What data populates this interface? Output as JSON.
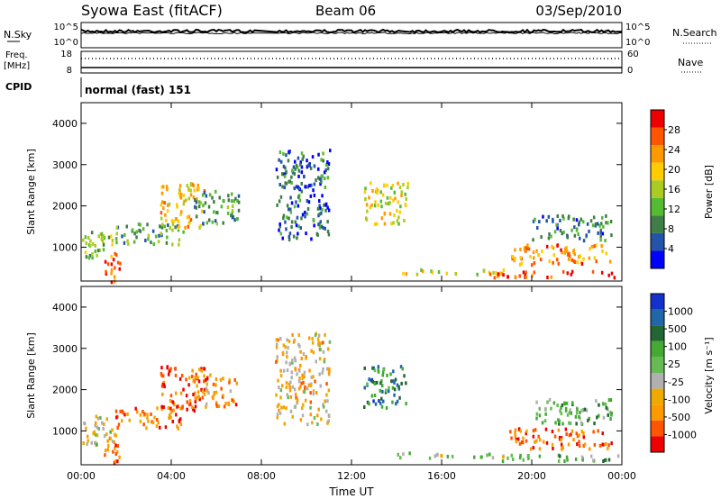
{
  "header": {
    "station": "Syowa East (fitACF)",
    "beam": "Beam 06",
    "date": "03/Sep/2010"
  },
  "top_panels": {
    "nsky": {
      "label": "N.Sky",
      "ticks": [
        "10^5",
        "10^0"
      ],
      "right_label": "N.Search",
      "right_ticks": [
        "10^5",
        "10^0"
      ]
    },
    "freq": {
      "label_line1": "Freq.",
      "label_line2": "[MHz]",
      "ticks": [
        "18",
        "8"
      ],
      "right_label": "Nave",
      "right_ticks": [
        "60",
        "0"
      ]
    },
    "cpid": {
      "label": "CPID",
      "mode": "normal (fast) 151"
    }
  },
  "colors": {
    "power": [
      "#0000ff",
      "#2255aa",
      "#3f7e46",
      "#55bb33",
      "#aacc22",
      "#ffcc00",
      "#ff9900",
      "#ff5500",
      "#ee0000"
    ],
    "velocity": [
      "#ee0000",
      "#ff5500",
      "#ff9900",
      "#eeaa00",
      "#b0b0b0",
      "#66bb55",
      "#44aa33",
      "#226633",
      "#2266aa",
      "#1133cc"
    ]
  },
  "chart_data": [
    {
      "type": "heatmap",
      "name": "power",
      "ylabel": "Slant Range [km]",
      "yticks": [
        "4000",
        "3000",
        "2000",
        "1000"
      ],
      "ylim": [
        180,
        4500
      ],
      "xlim": [
        "00:00",
        "24:00"
      ],
      "xticks": [
        "00:00",
        "04:00",
        "08:00",
        "12:00",
        "16:00",
        "20:00",
        "00:00"
      ],
      "colorbar": {
        "label": "Power [dB]",
        "ticks": [
          "28",
          "24",
          "20",
          "16",
          "12",
          "8",
          "4"
        ],
        "range": [
          0,
          30
        ]
      },
      "regions": [
        {
          "t": [
            0.0,
            1.5
          ],
          "r": [
            700,
            1400
          ],
          "level": 0.45
        },
        {
          "t": [
            1.0,
            1.7
          ],
          "r": [
            180,
            900
          ],
          "level": 0.85
        },
        {
          "t": [
            1.5,
            4.5
          ],
          "r": [
            1100,
            1600
          ],
          "level": 0.35
        },
        {
          "t": [
            3.5,
            5.5
          ],
          "r": [
            1500,
            2600
          ],
          "level": 0.65
        },
        {
          "t": [
            5.0,
            7.0
          ],
          "r": [
            1600,
            2400
          ],
          "level": 0.3
        },
        {
          "t": [
            8.5,
            11.0
          ],
          "r": [
            1200,
            3400
          ],
          "level": 0.2
        },
        {
          "t": [
            12.5,
            14.5
          ],
          "r": [
            1600,
            2600
          ],
          "level": 0.55
        },
        {
          "t": [
            14.0,
            19.0
          ],
          "r": [
            380,
            500
          ],
          "level": 0.55
        },
        {
          "t": [
            18.0,
            23.8
          ],
          "r": [
            300,
            450
          ],
          "level": 0.85
        },
        {
          "t": [
            19.0,
            23.5
          ],
          "r": [
            600,
            1100
          ],
          "level": 0.75
        },
        {
          "t": [
            20.0,
            23.5
          ],
          "r": [
            1200,
            1800
          ],
          "level": 0.25
        }
      ]
    },
    {
      "type": "heatmap",
      "name": "velocity",
      "xlabel": "Time UT",
      "ylabel": "Slant Range [km]",
      "yticks": [
        "4000",
        "3000",
        "2000",
        "1000"
      ],
      "ylim": [
        180,
        4500
      ],
      "xlim": [
        "00:00",
        "24:00"
      ],
      "xticks": [
        "00:00",
        "04:00",
        "08:00",
        "12:00",
        "16:00",
        "20:00",
        "00:00"
      ],
      "colorbar": {
        "label": "Velocity [m s⁻¹]",
        "ticks": [
          "1000",
          "500",
          "100",
          "25",
          "-25",
          "-100",
          "-500",
          "-1000"
        ],
        "range": [
          -1000,
          1000
        ]
      },
      "regions": [
        {
          "t": [
            0.0,
            1.5
          ],
          "r": [
            700,
            1400
          ],
          "level": 0.45
        },
        {
          "t": [
            1.0,
            1.7
          ],
          "r": [
            180,
            900
          ],
          "level": 0.2
        },
        {
          "t": [
            1.5,
            4.5
          ],
          "r": [
            1100,
            1600
          ],
          "level": 0.2
        },
        {
          "t": [
            3.5,
            5.5
          ],
          "r": [
            1500,
            2600
          ],
          "level": 0.15
        },
        {
          "t": [
            5.0,
            7.0
          ],
          "r": [
            1600,
            2400
          ],
          "level": 0.25
        },
        {
          "t": [
            8.5,
            11.0
          ],
          "r": [
            1200,
            3400
          ],
          "level": 0.35
        },
        {
          "t": [
            12.5,
            14.5
          ],
          "r": [
            1600,
            2600
          ],
          "level": 0.75
        },
        {
          "t": [
            14.0,
            19.0
          ],
          "r": [
            380,
            500
          ],
          "level": 0.5
        },
        {
          "t": [
            18.0,
            23.8
          ],
          "r": [
            300,
            450
          ],
          "level": 0.6
        },
        {
          "t": [
            19.0,
            23.5
          ],
          "r": [
            600,
            1100
          ],
          "level": 0.15
        },
        {
          "t": [
            20.0,
            23.5
          ],
          "r": [
            1200,
            1800
          ],
          "level": 0.6
        }
      ]
    }
  ]
}
